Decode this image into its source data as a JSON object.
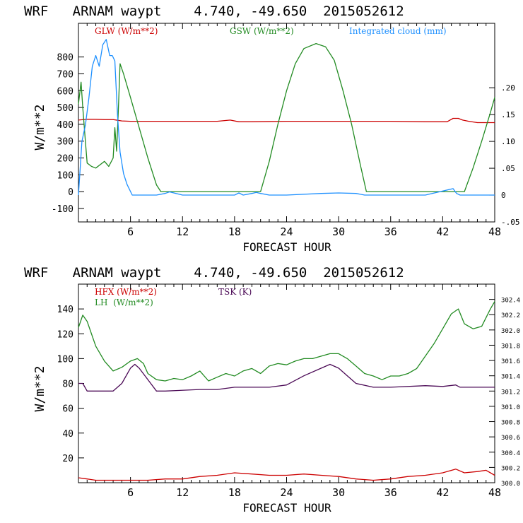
{
  "chart_data": [
    {
      "type": "line",
      "title": "WRF   ARNAM waypt    4.740, -49.650  2015052612",
      "xlabel": "FORECAST HOUR",
      "ylabel": "W/m**2",
      "xlim": [
        0,
        48
      ],
      "ylim": [
        -180,
        1000
      ],
      "y2lim": [
        -0.05,
        0.32
      ],
      "x_ticks": [
        "6",
        "12",
        "18",
        "24",
        "30",
        "36",
        "42",
        "48"
      ],
      "y_ticks": [
        "800",
        "700",
        "600",
        "500",
        "400",
        "300",
        "200",
        "100",
        "0",
        "-100"
      ],
      "y2_ticks": [
        ".20",
        ".15",
        ".10",
        ".05",
        "0",
        "-.05"
      ],
      "series": [
        {
          "name": "GLW (W/m**2)",
          "color": "#cc0000",
          "axis": "left",
          "x": [
            0,
            1,
            2,
            3,
            4,
            5,
            6,
            8,
            12,
            16,
            17.5,
            18.5,
            20,
            24,
            28,
            32,
            36,
            40,
            42.5,
            43.2,
            43.8,
            44.3,
            45,
            46,
            48
          ],
          "y": [
            425,
            430,
            430,
            428,
            428,
            420,
            418,
            418,
            418,
            418,
            425,
            415,
            415,
            418,
            418,
            418,
            418,
            415,
            415,
            435,
            435,
            425,
            418,
            410,
            410
          ]
        },
        {
          "name": "GSW (W/m**2)",
          "color": "#228b22",
          "axis": "left",
          "x": [
            0,
            0.3,
            0.5,
            0.8,
            1.0,
            1.5,
            2.0,
            2.5,
            3.0,
            3.5,
            4.0,
            4.2,
            4.4,
            4.6,
            4.8,
            5.2,
            6,
            7,
            8,
            9,
            9.5,
            21,
            22,
            23,
            24,
            25,
            26,
            27.4,
            28.5,
            29.5,
            30.5,
            31.5,
            32.5,
            33.2,
            44.5,
            45.5,
            46.5,
            47.5,
            48
          ],
          "y": [
            520,
            650,
            500,
            300,
            170,
            150,
            140,
            160,
            180,
            150,
            200,
            380,
            240,
            480,
            760,
            700,
            560,
            380,
            200,
            40,
            0,
            0,
            180,
            400,
            600,
            760,
            850,
            880,
            860,
            780,
            600,
            400,
            160,
            0,
            0,
            140,
            300,
            470,
            560
          ]
        },
        {
          "name": "Integrated cloud (mm)",
          "color": "#1e90ff",
          "axis": "right",
          "x": [
            0,
            0.4,
            0.8,
            1.2,
            1.6,
            2.0,
            2.4,
            2.8,
            3.2,
            3.6,
            3.9,
            4.2,
            4.5,
            4.8,
            5.2,
            5.6,
            6.2,
            7,
            8,
            9,
            10,
            10.5,
            11,
            12,
            18,
            18.5,
            19,
            20,
            20.5,
            21,
            22,
            24,
            28,
            30,
            32,
            33,
            40,
            43.2,
            43.6,
            44,
            48
          ],
          "y": [
            0,
            0.1,
            0.13,
            0.18,
            0.24,
            0.26,
            0.24,
            0.28,
            0.29,
            0.26,
            0.26,
            0.25,
            0.15,
            0.08,
            0.04,
            0.02,
            0,
            0,
            0,
            0,
            0.003,
            0.006,
            0.004,
            0,
            0,
            0.004,
            0,
            0.003,
            0.005,
            0.003,
            0,
            0,
            0.003,
            0.004,
            0.003,
            0,
            0,
            0.012,
            0.003,
            0,
            0
          ]
        }
      ]
    },
    {
      "type": "line",
      "title": "WRF   ARNAM waypt    4.740, -49.650  2015052612",
      "xlabel": "FORECAST HOUR",
      "ylabel": "W/m**2",
      "xlim": [
        0,
        48
      ],
      "ylim": [
        0,
        160
      ],
      "y2lim": [
        300.0,
        302.6
      ],
      "x_ticks": [
        "6",
        "12",
        "18",
        "24",
        "30",
        "36",
        "42",
        "48"
      ],
      "y_ticks": [
        "140",
        "120",
        "100",
        "80",
        "60",
        "40",
        "20"
      ],
      "y2_ticks": [
        "302.4",
        "302.2",
        "302.0",
        "301.8",
        "301.6",
        "301.4",
        "301.2",
        "301.0",
        "300.8",
        "300.6",
        "300.4",
        "300.2",
        "300.0"
      ],
      "series": [
        {
          "name": "HFX (W/m**2)",
          "color": "#cc0000",
          "axis": "left",
          "x": [
            0,
            1,
            2,
            4,
            6,
            8,
            10,
            12,
            14,
            16,
            18,
            20,
            22,
            24,
            26,
            28,
            30,
            32,
            34,
            36,
            38,
            40,
            42,
            43.5,
            44.5,
            46,
            47,
            48
          ],
          "y": [
            4,
            3,
            2,
            2,
            2,
            2,
            3,
            3,
            5,
            6,
            8,
            7,
            6,
            6,
            7,
            6,
            5,
            3,
            2,
            3,
            5,
            6,
            8,
            11,
            8,
            9,
            10,
            6
          ]
        },
        {
          "name": "LH  (W/m**2)",
          "color": "#228b22",
          "axis": "left",
          "x": [
            0,
            0.5,
            1,
            2,
            3,
            4,
            5,
            6,
            6.8,
            7.5,
            8,
            9,
            10,
            11,
            12,
            13,
            14,
            15,
            16,
            17,
            18,
            19,
            20,
            21,
            22,
            23,
            24,
            25,
            26,
            27,
            28,
            29,
            30,
            31,
            32,
            33,
            34,
            35,
            36,
            37,
            38,
            39,
            40,
            41,
            42,
            43,
            43.8,
            44.5,
            45.5,
            46.5,
            47.5,
            48
          ],
          "y": [
            125,
            135,
            130,
            110,
            98,
            90,
            93,
            98,
            100,
            96,
            88,
            83,
            82,
            84,
            83,
            86,
            90,
            82,
            85,
            88,
            86,
            90,
            92,
            88,
            94,
            96,
            95,
            98,
            100,
            100,
            102,
            104,
            104,
            100,
            94,
            88,
            86,
            83,
            86,
            86,
            88,
            92,
            102,
            112,
            124,
            136,
            140,
            128,
            124,
            126,
            140,
            146
          ]
        },
        {
          "name": "TSK (K)",
          "color": "#4b0a56",
          "axis": "right",
          "x": [
            0,
            0.5,
            1,
            2,
            3,
            4,
            5,
            6,
            6.5,
            7,
            8,
            9,
            10,
            14,
            16,
            18,
            20,
            22,
            24,
            26,
            28,
            29,
            30,
            31,
            32,
            34,
            36,
            40,
            42,
            43.5,
            44,
            46,
            48
          ],
          "y": [
            301.3,
            301.3,
            301.2,
            301.2,
            301.2,
            301.2,
            301.3,
            301.5,
            301.55,
            301.5,
            301.35,
            301.2,
            301.2,
            301.22,
            301.22,
            301.25,
            301.25,
            301.25,
            301.28,
            301.4,
            301.5,
            301.55,
            301.5,
            301.4,
            301.3,
            301.25,
            301.25,
            301.27,
            301.26,
            301.28,
            301.25,
            301.25,
            301.25
          ]
        }
      ]
    }
  ]
}
